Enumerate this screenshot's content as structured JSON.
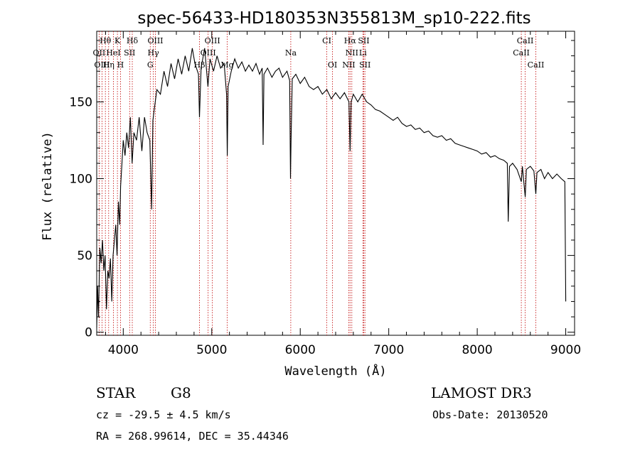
{
  "chart_data": {
    "type": "line",
    "title": "spec-56433-HD180353N355813M_sp10-222.fits",
    "xlabel": "Wavelength (Å)",
    "ylabel": "Flux (relative)",
    "xlim": [
      3700,
      9100
    ],
    "ylim": [
      -2,
      196
    ],
    "xticks": [
      4000,
      5000,
      6000,
      7000,
      8000,
      9000
    ],
    "yticks": [
      0,
      50,
      100,
      150
    ],
    "spectrum": [
      [
        3700,
        3
      ],
      [
        3710,
        30
      ],
      [
        3720,
        10
      ],
      [
        3735,
        55
      ],
      [
        3750,
        45
      ],
      [
        3765,
        60
      ],
      [
        3780,
        40
      ],
      [
        3795,
        50
      ],
      [
        3810,
        15
      ],
      [
        3825,
        40
      ],
      [
        3840,
        35
      ],
      [
        3855,
        48
      ],
      [
        3870,
        20
      ],
      [
        3885,
        50
      ],
      [
        3900,
        60
      ],
      [
        3915,
        70
      ],
      [
        3930,
        50
      ],
      [
        3945,
        85
      ],
      [
        3960,
        70
      ],
      [
        3970,
        95
      ],
      [
        3985,
        110
      ],
      [
        4000,
        125
      ],
      [
        4020,
        115
      ],
      [
        4040,
        130
      ],
      [
        4060,
        120
      ],
      [
        4080,
        140
      ],
      [
        4100,
        110
      ],
      [
        4120,
        130
      ],
      [
        4150,
        125
      ],
      [
        4180,
        140
      ],
      [
        4210,
        118
      ],
      [
        4240,
        140
      ],
      [
        4270,
        130
      ],
      [
        4300,
        125
      ],
      [
        4320,
        80
      ],
      [
        4335,
        138
      ],
      [
        4350,
        145
      ],
      [
        4380,
        158
      ],
      [
        4420,
        155
      ],
      [
        4460,
        170
      ],
      [
        4500,
        160
      ],
      [
        4540,
        175
      ],
      [
        4580,
        165
      ],
      [
        4620,
        178
      ],
      [
        4660,
        168
      ],
      [
        4700,
        180
      ],
      [
        4740,
        170
      ],
      [
        4780,
        185
      ],
      [
        4810,
        175
      ],
      [
        4850,
        168
      ],
      [
        4861,
        140
      ],
      [
        4880,
        172
      ],
      [
        4920,
        185
      ],
      [
        4957,
        160
      ],
      [
        4980,
        178
      ],
      [
        5020,
        170
      ],
      [
        5060,
        180
      ],
      [
        5100,
        172
      ],
      [
        5140,
        175
      ],
      [
        5167,
        155
      ],
      [
        5175,
        115
      ],
      [
        5185,
        160
      ],
      [
        5220,
        170
      ],
      [
        5260,
        178
      ],
      [
        5300,
        172
      ],
      [
        5340,
        176
      ],
      [
        5380,
        170
      ],
      [
        5420,
        174
      ],
      [
        5460,
        170
      ],
      [
        5500,
        175
      ],
      [
        5540,
        168
      ],
      [
        5570,
        172
      ],
      [
        5580,
        122
      ],
      [
        5590,
        168
      ],
      [
        5630,
        172
      ],
      [
        5680,
        166
      ],
      [
        5720,
        170
      ],
      [
        5760,
        172
      ],
      [
        5800,
        166
      ],
      [
        5850,
        170
      ],
      [
        5880,
        164
      ],
      [
        5890,
        100
      ],
      [
        5896,
        125
      ],
      [
        5910,
        165
      ],
      [
        5950,
        168
      ],
      [
        6000,
        162
      ],
      [
        6050,
        166
      ],
      [
        6100,
        160
      ],
      [
        6150,
        158
      ],
      [
        6200,
        160
      ],
      [
        6250,
        155
      ],
      [
        6300,
        158
      ],
      [
        6350,
        152
      ],
      [
        6400,
        156
      ],
      [
        6450,
        152
      ],
      [
        6500,
        156
      ],
      [
        6550,
        150
      ],
      [
        6563,
        118
      ],
      [
        6575,
        150
      ],
      [
        6600,
        155
      ],
      [
        6650,
        150
      ],
      [
        6700,
        155
      ],
      [
        6750,
        150
      ],
      [
        6800,
        148
      ],
      [
        6850,
        145
      ],
      [
        6900,
        144
      ],
      [
        6950,
        142
      ],
      [
        7000,
        140
      ],
      [
        7050,
        138
      ],
      [
        7100,
        140
      ],
      [
        7150,
        136
      ],
      [
        7200,
        134
      ],
      [
        7250,
        135
      ],
      [
        7300,
        132
      ],
      [
        7350,
        133
      ],
      [
        7400,
        130
      ],
      [
        7450,
        131
      ],
      [
        7500,
        128
      ],
      [
        7550,
        127
      ],
      [
        7600,
        128
      ],
      [
        7650,
        125
      ],
      [
        7700,
        126
      ],
      [
        7750,
        123
      ],
      [
        7800,
        122
      ],
      [
        7850,
        121
      ],
      [
        7900,
        120
      ],
      [
        7950,
        119
      ],
      [
        8000,
        118
      ],
      [
        8050,
        116
      ],
      [
        8100,
        117
      ],
      [
        8150,
        114
      ],
      [
        8200,
        115
      ],
      [
        8250,
        113
      ],
      [
        8300,
        112
      ],
      [
        8340,
        110
      ],
      [
        8350,
        72
      ],
      [
        8365,
        108
      ],
      [
        8400,
        110
      ],
      [
        8450,
        106
      ],
      [
        8498,
        98
      ],
      [
        8510,
        108
      ],
      [
        8542,
        88
      ],
      [
        8555,
        106
      ],
      [
        8600,
        108
      ],
      [
        8640,
        105
      ],
      [
        8662,
        90
      ],
      [
        8675,
        104
      ],
      [
        8720,
        106
      ],
      [
        8760,
        100
      ],
      [
        8800,
        104
      ],
      [
        8850,
        100
      ],
      [
        8900,
        103
      ],
      [
        8950,
        100
      ],
      [
        8990,
        98
      ],
      [
        9000,
        20
      ]
    ],
    "lines": [
      {
        "name": "Hθ",
        "x": 3798,
        "row": 0
      },
      {
        "name": "K",
        "x": 3934,
        "row": 0
      },
      {
        "name": "Hδ",
        "x": 4102,
        "row": 0
      },
      {
        "name": "OIII",
        "x": 4363,
        "row": 0
      },
      {
        "name": "OIII",
        "x": 5007,
        "row": 0
      },
      {
        "name": "CI",
        "x": 6300,
        "row": 0
      },
      {
        "name": "Hα",
        "x": 6563,
        "row": 0
      },
      {
        "name": "SII",
        "x": 6717,
        "row": 0
      },
      {
        "name": "CaII",
        "x": 8542,
        "row": 0
      },
      {
        "name": "OII",
        "x": 3727,
        "row": 1
      },
      {
        "name": "HeI",
        "x": 3889,
        "row": 1
      },
      {
        "name": "SII",
        "x": 4072,
        "row": 1
      },
      {
        "name": "Hγ",
        "x": 4340,
        "row": 1
      },
      {
        "name": "OIII",
        "x": 4959,
        "row": 1
      },
      {
        "name": "Na",
        "x": 5893,
        "row": 1
      },
      {
        "name": "NII",
        "x": 6583,
        "row": 1
      },
      {
        "name": "Li",
        "x": 6708,
        "row": 1
      },
      {
        "name": "CaII",
        "x": 8498,
        "row": 1
      },
      {
        "name": "OIII",
        "x": 3760,
        "row": 2
      },
      {
        "name": "Hη",
        "x": 3835,
        "row": 2
      },
      {
        "name": "H",
        "x": 3969,
        "row": 2
      },
      {
        "name": "G",
        "x": 4305,
        "row": 2
      },
      {
        "name": "Hβ",
        "x": 4861,
        "row": 2
      },
      {
        "name": "Mg",
        "x": 5175,
        "row": 2
      },
      {
        "name": "OI",
        "x": 6364,
        "row": 2
      },
      {
        "name": "NII",
        "x": 6548,
        "row": 2
      },
      {
        "name": "SII",
        "x": 6731,
        "row": 2
      },
      {
        "name": "CaII",
        "x": 8662,
        "row": 2
      }
    ],
    "colors": {
      "spectrum": "#000000",
      "lines": "#c00000"
    }
  },
  "info": {
    "class": "STAR",
    "subclass": "G8",
    "survey": "LAMOST DR3",
    "cz": "cz = -29.5 ± 4.5 km/s",
    "obs_date": "Obs-Date: 20130520",
    "radec": "RA = 268.99614, DEC =  35.44346"
  }
}
